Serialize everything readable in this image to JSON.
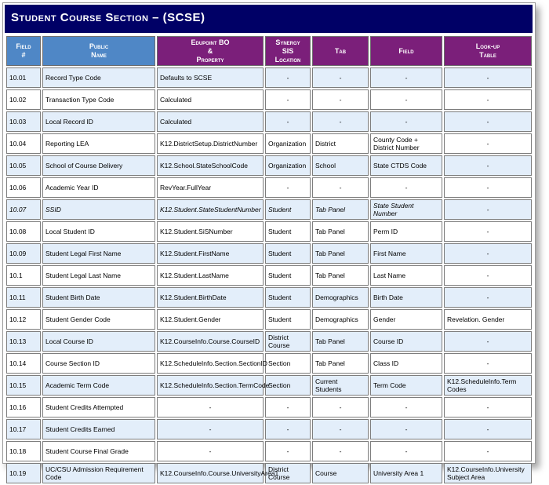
{
  "title": "Student Course Section – (SCSE)",
  "headers": {
    "field_num": [
      "Field",
      "#"
    ],
    "public_name": [
      "Public",
      "Name"
    ],
    "edupoint": [
      "Edupoint BO",
      "&",
      "Property"
    ],
    "synergy": [
      "Synergy",
      "SIS",
      "Location"
    ],
    "tab": [
      "Tab"
    ],
    "field": [
      "Field"
    ],
    "lookup": [
      "Look-up",
      "Table"
    ]
  },
  "rows": [
    [
      "10.01",
      "Record Type Code",
      "Defaults to SCSE",
      "-",
      "-",
      "-",
      "-"
    ],
    [
      "10.02",
      "Transaction Type Code",
      "Calculated",
      "-",
      "-",
      "-",
      "-"
    ],
    [
      "10.03",
      "Local Record ID",
      "Calculated",
      "-",
      "-",
      "-",
      "-"
    ],
    [
      "10.04",
      "Reporting LEA",
      "K12.DistrictSetup.DistrictNumber",
      "Organization",
      "District",
      "County Code + District Number",
      "-"
    ],
    [
      "10.05",
      "School of Course Delivery",
      "K12.School.StateSchoolCode",
      "Organization",
      "School",
      "State CTDS Code",
      "-"
    ],
    [
      "10.06",
      "Academic Year ID",
      "RevYear.FullYear",
      "-",
      "-",
      "-",
      "-"
    ],
    [
      "10.07",
      "SSID",
      "K12.Student.StateStudentNumber",
      "Student",
      "Tab Panel",
      "State Student Number",
      "-"
    ],
    [
      "10.08",
      "Local Student ID",
      "K12.Student.SiSNumber",
      "Student",
      "Tab Panel",
      "Perm ID",
      "-"
    ],
    [
      "10.09",
      "Student Legal First Name",
      "K12.Student.FirstName",
      "Student",
      "Tab Panel",
      "First Name",
      "-"
    ],
    [
      "10.1",
      "Student Legal Last Name",
      "K12.Student.LastName",
      "Student",
      "Tab Panel",
      "Last Name",
      "-"
    ],
    [
      "10.11",
      "Student Birth Date",
      "K12.Student.BirthDate",
      "Student",
      "Demographics",
      "Birth Date",
      "-"
    ],
    [
      "10.12",
      "Student Gender Code",
      "K12.Student.Gender",
      "Student",
      "Demographics",
      "Gender",
      "Revelation. Gender"
    ],
    [
      "10.13",
      "Local Course ID",
      "K12.CourseInfo.Course.CourseID",
      "District Course",
      "Tab Panel",
      "Course ID",
      "-"
    ],
    [
      "10.14",
      "Course Section ID",
      "K12.ScheduleInfo.Section.SectionID",
      "Section",
      "Tab Panel",
      "Class ID",
      "-"
    ],
    [
      "10.15",
      "Academic Term Code",
      "K12.ScheduleInfo.Section.TermCode",
      "Section",
      "Current Students",
      "Term Code",
      "K12.ScheduleInfo.Term Codes"
    ],
    [
      "10.16",
      "Student Credits Attempted",
      "-",
      "-",
      "-",
      "-",
      "-"
    ],
    [
      "10.17",
      "Student Credits Earned",
      "-",
      "-",
      "-",
      "-",
      "-"
    ],
    [
      "10.18",
      "Student Course Final Grade",
      "-",
      "-",
      "-",
      "-",
      "-"
    ],
    [
      "10.19",
      "UC/CSU Admission Requirement Code",
      "K12.CourseInfo.Course.UniversityArea1",
      "District Course",
      "Course",
      "University Area 1",
      "K12.CourseInfo.University Subject Area"
    ]
  ],
  "italic_row_index": 6,
  "colors": {
    "title_bg": "#000066",
    "header_blue": "#4f87c6",
    "header_purple": "#7b1f7a",
    "row_alt": "#e3eefa"
  }
}
